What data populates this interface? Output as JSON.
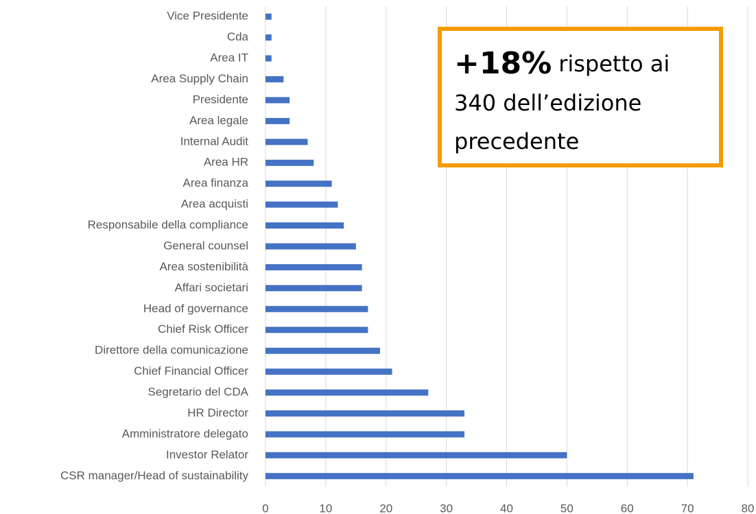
{
  "chart_data": {
    "type": "barh",
    "categories": [
      "Vice Presidente",
      "Cda",
      "Area IT",
      "Area Supply Chain",
      "Presidente",
      "Area legale",
      "Internal Audit",
      "Area HR",
      "Area finanza",
      "Area acquisti",
      "Responsabile della compliance",
      "General counsel",
      "Area sostenibilità",
      "Affari societari",
      "Head of governance",
      "Chief Risk Officer",
      "Direttore della comunicazione",
      "Chief Financial Officer",
      "Segretario del CDA",
      "HR Director",
      "Amministratore delegato",
      "Investor Relator",
      "CSR manager/Head of sustainability"
    ],
    "values": [
      1,
      1,
      1,
      3,
      4,
      4,
      7,
      8,
      11,
      12,
      13,
      15,
      16,
      16,
      17,
      17,
      19,
      21,
      27,
      33,
      33,
      50,
      71
    ],
    "color": "#4472c4",
    "xlim": [
      0,
      80
    ],
    "xticks": [
      0,
      10,
      20,
      30,
      40,
      50,
      60,
      70,
      80
    ],
    "grid": true,
    "annotation": {
      "highlight": "+18%",
      "text": [
        "rispetto ai",
        "340 dell’edizione",
        "precedente"
      ]
    }
  }
}
